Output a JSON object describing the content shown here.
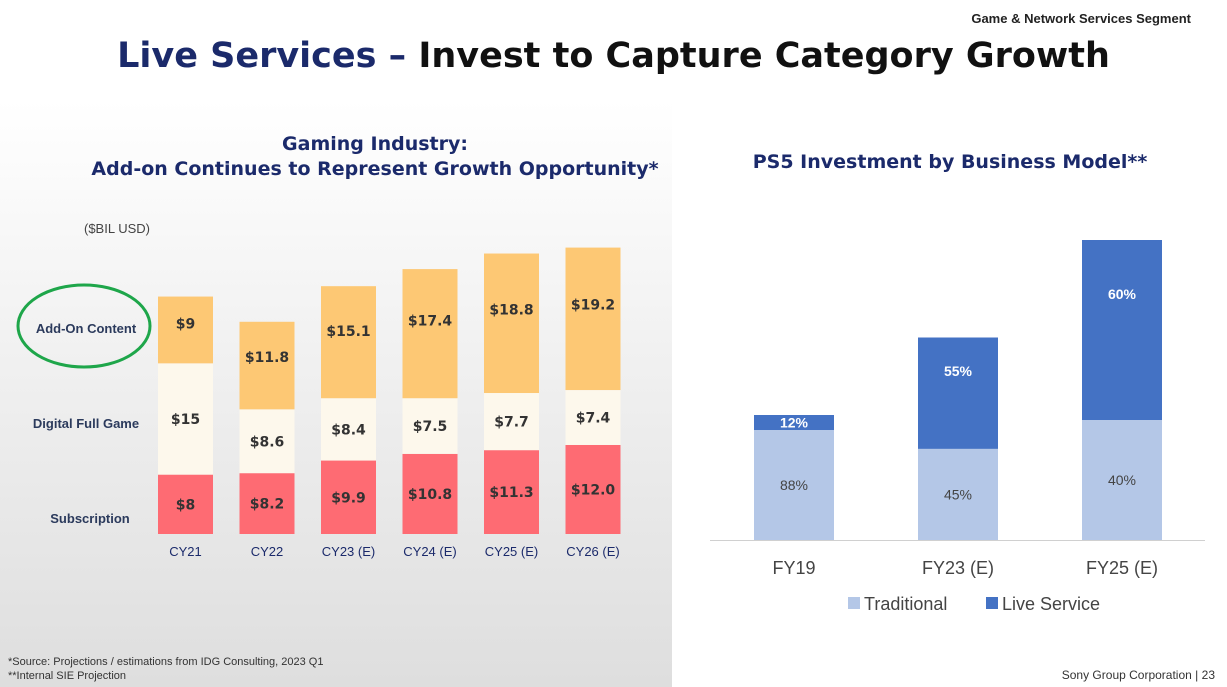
{
  "header": {
    "segment": "Game & Network Services Segment",
    "title_part1": "Live Services –",
    "title_part2": "Invest to Capture Category Growth"
  },
  "footer": {
    "source_note": "*Source: Projections / estimations from IDG Consulting, 2023 Q1",
    "internal_note": "**Internal SIE Projection",
    "corp": "Sony Group Corporation",
    "separator": "|",
    "page": "23"
  },
  "highlight": {
    "circled_series": "Add-On Content",
    "circle_color": "#1ea64a"
  },
  "chart_data": [
    {
      "type": "bar",
      "stacked": true,
      "title": "Gaming Industry:\nAdd-on Continues to Represent Growth Opportunity*",
      "title_line1": "Gaming Industry:",
      "title_line2": "Add-on Continues to Represent Growth Opportunity*",
      "unit_label": "($BIL USD)",
      "categories": [
        "CY21",
        "CY22",
        "CY23 (E)",
        "CY24 (E)",
        "CY25 (E)",
        "CY26 (E)"
      ],
      "series": [
        {
          "name": "Subscription",
          "color": "#fe6b73",
          "values": [
            8,
            8.2,
            9.9,
            10.8,
            11.3,
            12.0
          ],
          "labels": [
            "$8",
            "$8.2",
            "$9.9",
            "$10.8",
            "$11.3",
            "$12.0"
          ]
        },
        {
          "name": "Digital Full Game",
          "color": "#fdf8ec",
          "values": [
            15,
            8.6,
            8.4,
            7.5,
            7.7,
            7.4
          ],
          "labels": [
            "$15",
            "$8.6",
            "$8.4",
            "$7.5",
            "$7.7",
            "$7.4"
          ]
        },
        {
          "name": "Add-On Content",
          "color": "#fdc874",
          "values": [
            9,
            11.8,
            15.1,
            17.4,
            18.8,
            19.2
          ],
          "labels": [
            "$9",
            "$11.8",
            "$15.1",
            "$17.4",
            "$18.8",
            "$19.2"
          ]
        }
      ],
      "legend": "left",
      "grid": false,
      "ylim": [
        0,
        40
      ]
    },
    {
      "type": "bar",
      "stacked": true,
      "title": "PS5 Investment by Business Model**",
      "categories": [
        "FY19",
        "FY23 (E)",
        "FY25 (E)"
      ],
      "relative_total": [
        1.0,
        1.62,
        2.4
      ],
      "series": [
        {
          "name": "Traditional",
          "color": "#b4c7e7",
          "values": [
            88,
            45,
            40
          ],
          "labels": [
            "88%",
            "45%",
            "40%"
          ]
        },
        {
          "name": "Live Service",
          "color": "#4472c4",
          "values": [
            12,
            55,
            60
          ],
          "labels": [
            "12%",
            "55%",
            "60%"
          ]
        }
      ],
      "legend": "bottom",
      "grid": false
    }
  ]
}
